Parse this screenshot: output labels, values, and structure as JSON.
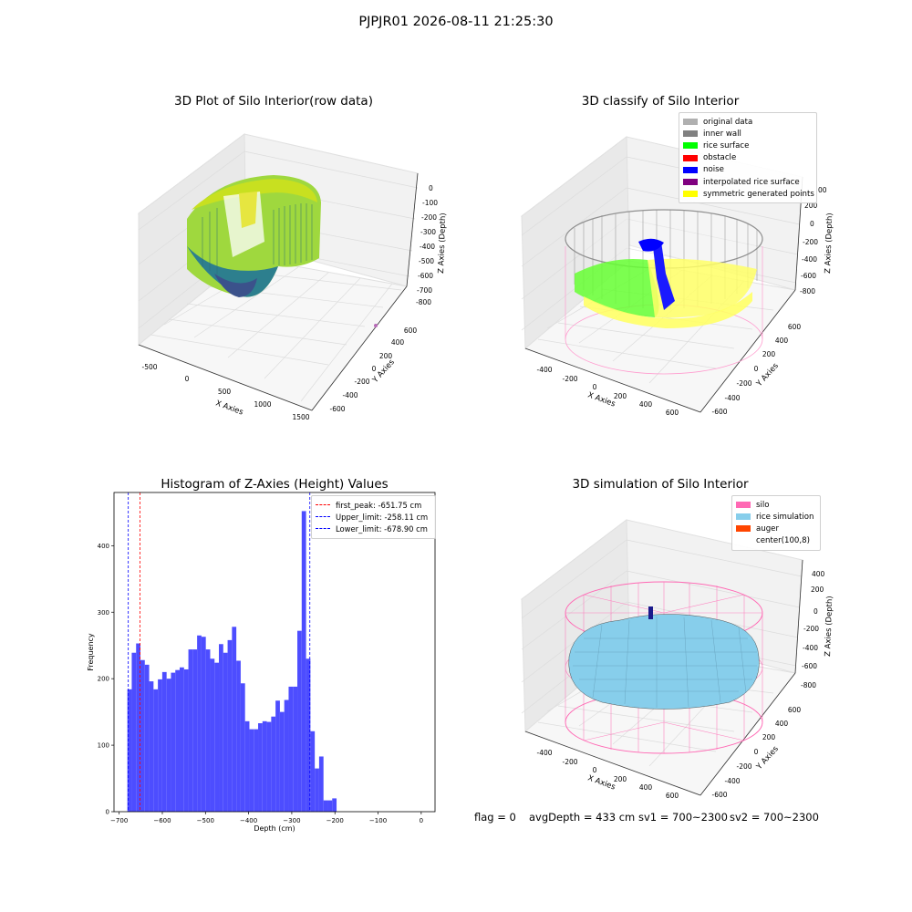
{
  "page_title": "PJPJR01 2026-08-11 21:25:30",
  "footer": {
    "flag": "flag = 0",
    "avg_depth": "avgDepth = 433 cm",
    "sv1": "sv1 = 700~2300",
    "sv2": "sv2 = 700~2300"
  },
  "colors": {
    "hist_bar": "#4d4dff",
    "first_peak_line": "#ff0000",
    "limit_lines": "#0000ff",
    "silo_wire": "#ff69b4",
    "rice_simulation": "#87ceeb",
    "inner_wall": "#808080",
    "rice_surface": "#00ff00",
    "noise": "#0000ff",
    "symmetric_points": "#ffff00"
  },
  "chart_data": [
    {
      "type": "scatter",
      "panel": "3d-raw",
      "title": "3D Plot of Silo Interior(row data)",
      "xlabel": "X Axies",
      "ylabel": "Y Axies",
      "zlabel": "Z Axies (Depth)",
      "x_ticks": [
        "-500",
        "0",
        "500",
        "1000",
        "1500"
      ],
      "y_ticks": [
        "-600",
        "-400",
        "-200",
        "0",
        "200",
        "400",
        "600"
      ],
      "z_ticks": [
        "0",
        "-100",
        "-200",
        "-300",
        "-400",
        "-500",
        "-600",
        "-700",
        "-800"
      ],
      "colormap": "viridis"
    },
    {
      "type": "scatter",
      "panel": "3d-classify",
      "title": "3D classify of Silo Interior",
      "xlabel": "X Axies",
      "ylabel": "Y Axies",
      "zlabel": "Z Axies (Depth)",
      "x_ticks": [
        "-400",
        "-200",
        "0",
        "200",
        "400",
        "600"
      ],
      "y_ticks": [
        "-600",
        "-400",
        "-200",
        "0",
        "200",
        "400",
        "600"
      ],
      "z_ticks": [
        "200",
        "0",
        "-200",
        "-400",
        "-600",
        "-800"
      ],
      "z_partial_tick": "00",
      "legend": [
        {
          "label": "original data",
          "color": "#b0b0b0"
        },
        {
          "label": "inner wall",
          "color": "#808080"
        },
        {
          "label": "rice surface",
          "color": "#00ff00"
        },
        {
          "label": "obstacle",
          "color": "#ff0000"
        },
        {
          "label": "noise",
          "color": "#0000ff"
        },
        {
          "label": "interpolated rice surface",
          "color": "#800080"
        },
        {
          "label": "symmetric generated points",
          "color": "#ffff00"
        }
      ]
    },
    {
      "type": "bar",
      "panel": "histogram",
      "title": "Histogram of Z-Axies (Height) Values",
      "xlabel": "Depth (cm)",
      "ylabel": "Frequency",
      "xlim": [
        -712,
        32
      ],
      "ylim": [
        0,
        480
      ],
      "x_ticks": [
        -700,
        -600,
        -500,
        -400,
        -300,
        -200,
        -100,
        0
      ],
      "y_ticks": [
        0,
        100,
        200,
        300,
        400
      ],
      "bin_start": -681,
      "bin_width": 10.1,
      "values": [
        184,
        239,
        253,
        228,
        221,
        196,
        184,
        199,
        210,
        200,
        209,
        213,
        217,
        214,
        244,
        244,
        265,
        263,
        244,
        230,
        224,
        252,
        239,
        258,
        278,
        227,
        193,
        136,
        124,
        124,
        133,
        136,
        135,
        143,
        167,
        150,
        168,
        188,
        188,
        272,
        452,
        230,
        121,
        65,
        83,
        17,
        17,
        20
      ],
      "vlines": [
        {
          "value": -651.75,
          "label": "first_peak: -651.75 cm",
          "color": "#ff0000"
        },
        {
          "value": -258.11,
          "label": "Upper_limit: -258.11 cm",
          "color": "#0000ff"
        },
        {
          "value": -678.9,
          "label": "Lower_limit: -678.90 cm",
          "color": "#0000ff"
        }
      ]
    },
    {
      "type": "area",
      "panel": "3d-simulation",
      "title": "3D simulation of Silo Interior",
      "xlabel": "X Axies",
      "ylabel": "Y Axies",
      "zlabel": "Z Axies (Depth)",
      "x_ticks": [
        "-400",
        "-200",
        "0",
        "200",
        "400",
        "600"
      ],
      "y_ticks": [
        "-600",
        "-400",
        "-200",
        "0",
        "200",
        "400",
        "600"
      ],
      "z_ticks": [
        "400",
        "200",
        "0",
        "-200",
        "-400",
        "-600",
        "-800"
      ],
      "legend": [
        {
          "label": "silo",
          "color": "#ff69b4"
        },
        {
          "label": "rice simulation",
          "color": "#87ceeb"
        },
        {
          "label": "auger",
          "color": "#ff4500"
        },
        {
          "label": "center(100,8)",
          "color": ""
        }
      ]
    }
  ]
}
